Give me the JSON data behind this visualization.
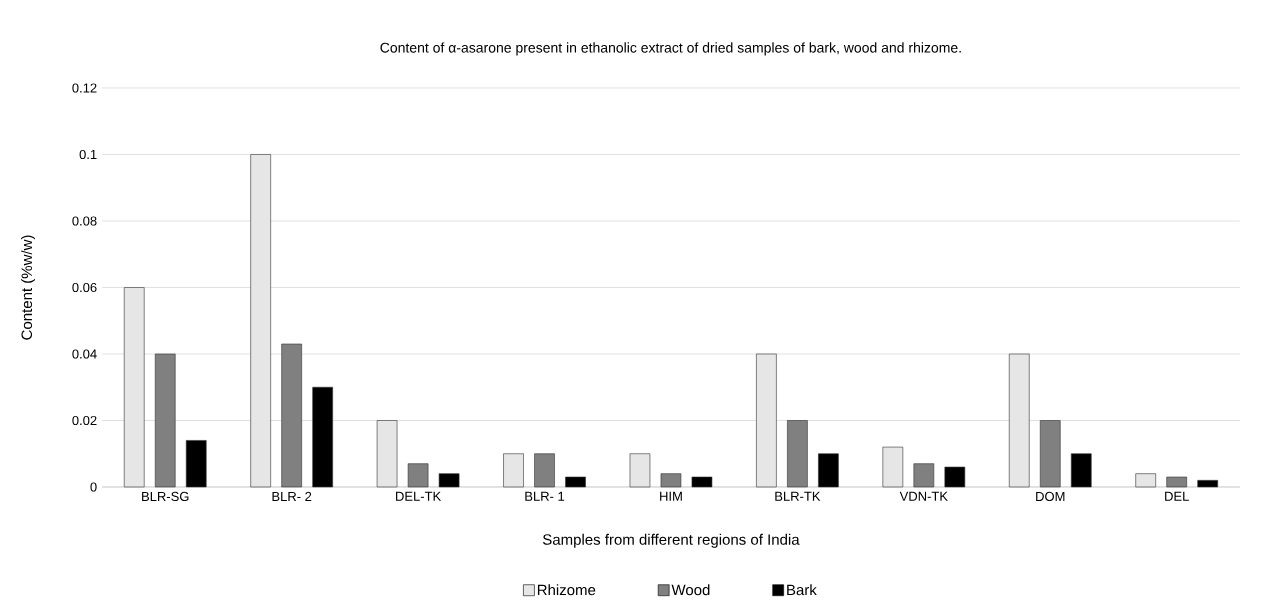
{
  "chart_data": {
    "type": "bar",
    "title": "Content of α-asarone present in  ethanolic extract of dried samples of bark, wood and rhizome.",
    "xlabel": "Samples from different regions of India",
    "ylabel": "Content (%w/w)",
    "categories": [
      "BLR-SG",
      "BLR- 2",
      "DEL-TK",
      "BLR- 1",
      "HIM",
      "BLR-TK",
      "VDN-TK",
      "DOM",
      "DEL"
    ],
    "series": [
      {
        "name": "Rhizome",
        "color": "#e6e6e6",
        "values": [
          0.06,
          0.1,
          0.02,
          0.01,
          0.01,
          0.04,
          0.012,
          0.04,
          0.004
        ]
      },
      {
        "name": "Wood",
        "color": "#808080",
        "values": [
          0.04,
          0.043,
          0.007,
          0.01,
          0.004,
          0.02,
          0.007,
          0.02,
          0.003
        ]
      },
      {
        "name": "Bark",
        "color": "#000000",
        "values": [
          0.014,
          0.03,
          0.004,
          0.003,
          0.003,
          0.01,
          0.006,
          0.01,
          0.002
        ]
      }
    ],
    "ylim": [
      0,
      0.12
    ],
    "yticks": [
      0,
      0.02,
      0.04,
      0.06,
      0.08,
      0.1,
      0.12
    ],
    "grid": "y",
    "legend": "bottom"
  }
}
